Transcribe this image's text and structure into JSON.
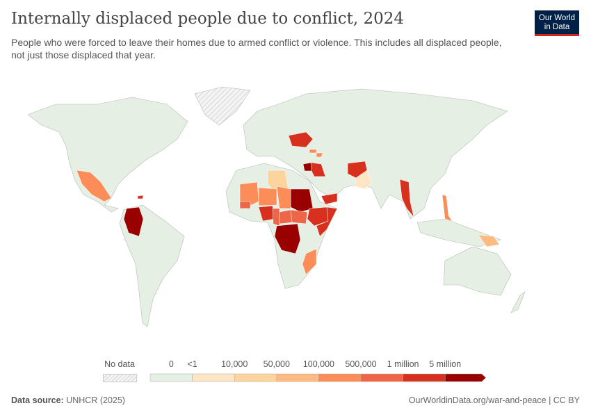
{
  "header": {
    "title": "Internally displaced people due to conflict, 2024",
    "subtitle": "People who were forced to leave their homes due to armed conflict or violence. This includes all displaced people, not just those displaced that year.",
    "logo": "Our World in Data"
  },
  "legend": {
    "no_data_label": "No data",
    "tick_labels": [
      "0",
      "<1",
      "10,000",
      "50,000",
      "100,000",
      "500,000",
      "1 million",
      "5 million"
    ],
    "colors": [
      "#e5efe3",
      "#fee6c5",
      "#fdd49e",
      "#fdba83",
      "#fc8d59",
      "#ef6548",
      "#d7301f",
      "#990000"
    ],
    "no_data_color": "#eeeeee"
  },
  "map_data": [
    {
      "country": "Colombia",
      "bin": 7
    },
    {
      "country": "Mexico",
      "bin": 4
    },
    {
      "country": "Haiti",
      "bin": 6
    },
    {
      "country": "Ukraine",
      "bin": 6
    },
    {
      "country": "Syria",
      "bin": 7
    },
    {
      "country": "Iraq",
      "bin": 6
    },
    {
      "country": "Afghanistan",
      "bin": 6
    },
    {
      "country": "Pakistan",
      "bin": 1
    },
    {
      "country": "Libya",
      "bin": 2
    },
    {
      "country": "Sudan",
      "bin": 7
    },
    {
      "country": "Ethiopia",
      "bin": 6
    },
    {
      "country": "Somalia",
      "bin": 6
    },
    {
      "country": "Yemen",
      "bin": 6
    },
    {
      "country": "DR Congo",
      "bin": 7
    },
    {
      "country": "Nigeria",
      "bin": 6
    },
    {
      "country": "Cameroon",
      "bin": 5
    },
    {
      "country": "Mali",
      "bin": 4
    },
    {
      "country": "Burkina Faso",
      "bin": 5
    },
    {
      "country": "Niger",
      "bin": 4
    },
    {
      "country": "Chad",
      "bin": 4
    },
    {
      "country": "South Sudan",
      "bin": 5
    },
    {
      "country": "Central African Republic",
      "bin": 5
    },
    {
      "country": "Myanmar",
      "bin": 6
    },
    {
      "country": "Philippines",
      "bin": 4
    },
    {
      "country": "Papua New Guinea",
      "bin": 3
    },
    {
      "country": "Mozambique",
      "bin": 4
    },
    {
      "country": "Georgia",
      "bin": 4
    },
    {
      "country": "Azerbaijan",
      "bin": 4
    }
  ],
  "footer": {
    "source_label": "Data source:",
    "source": "UNHCR (2025)",
    "link": "OurWorldinData.org/war-and-peace | CC BY"
  }
}
